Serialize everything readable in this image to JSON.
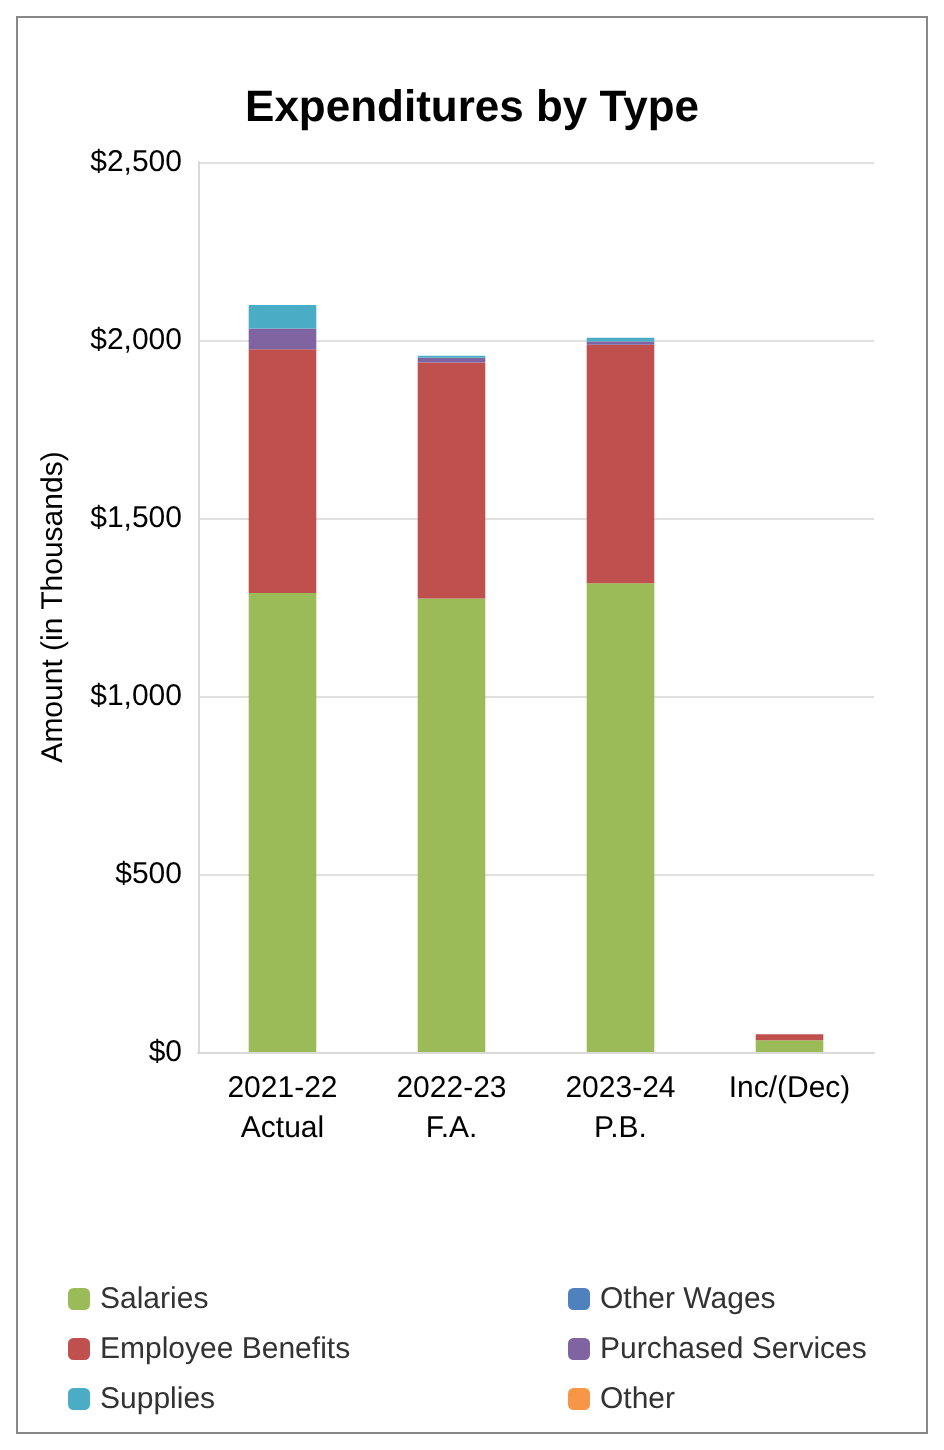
{
  "chart_data": {
    "type": "bar",
    "title": "Expenditures by Type",
    "ylabel": "Amount (in Thousands)",
    "categories": [
      "2021-22\nActual",
      "2022-23\nF.A.",
      "2023-24\nP.B.",
      "Inc/(Dec)"
    ],
    "stacked": true,
    "grid": "y",
    "legend": "bottom",
    "ylim": [
      0,
      2500
    ],
    "yticks": [
      {
        "value": 0,
        "label": "$0"
      },
      {
        "value": 500,
        "label": "$500"
      },
      {
        "value": 1000,
        "label": "$1,000"
      },
      {
        "value": 1500,
        "label": "$1,500"
      },
      {
        "value": 2000,
        "label": "$2,000"
      },
      {
        "value": 2500,
        "label": "$2,500"
      }
    ],
    "series": [
      {
        "name": "Salaries",
        "color": "#9bbb59",
        "values": [
          1289,
          1274,
          1317,
          33
        ]
      },
      {
        "name": "Other Wages",
        "color": "#4f81bd",
        "values": [
          0,
          0,
          0,
          0
        ]
      },
      {
        "name": "Employee Benefits",
        "color": "#c0504d",
        "values": [
          685,
          663,
          670,
          17
        ]
      },
      {
        "name": "Purchased Services",
        "color": "#8064a2",
        "values": [
          58,
          13,
          9,
          0
        ]
      },
      {
        "name": "Supplies",
        "color": "#4bacc6",
        "values": [
          66,
          6,
          10,
          0
        ]
      },
      {
        "name": "Other",
        "color": "#f79646",
        "values": [
          0,
          0,
          0,
          0
        ]
      }
    ]
  }
}
